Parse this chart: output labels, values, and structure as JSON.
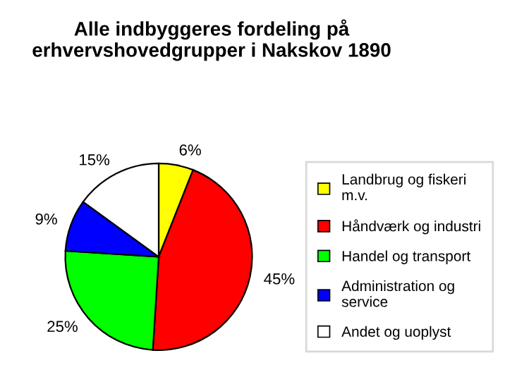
{
  "chart_data": {
    "type": "pie",
    "title": "Alle indbyggeres fordeling på\nerhvervshovedgrupper i Nakskov 1890",
    "categories": [
      "Landbrug og fiskeri m.v.",
      "Håndværk og industri",
      "Handel og transport",
      "Administration og service",
      "Andet og uoplyst"
    ],
    "values": [
      6,
      45,
      25,
      9,
      15
    ],
    "colors": [
      "#ffff00",
      "#ff0000",
      "#00ff00",
      "#0000ff",
      "#ffffff"
    ],
    "value_labels": [
      "6%",
      "45%",
      "25%",
      "9%",
      "15%"
    ],
    "legend": "right"
  }
}
